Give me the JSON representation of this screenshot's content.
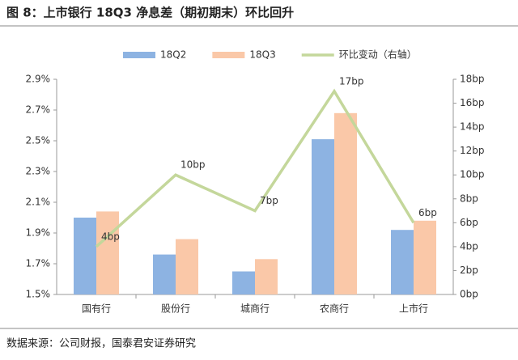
{
  "chart_data": {
    "type": "bar",
    "title": "图 8：上市银行 18Q3 净息差（期初期末）环比回升",
    "source": "数据来源：公司财报，国泰君安证券研究",
    "categories": [
      "国有行",
      "股份行",
      "城商行",
      "农商行",
      "上市行"
    ],
    "series": [
      {
        "name": "18Q2",
        "color": "#8db3e2",
        "values": [
          2.0,
          1.76,
          1.65,
          2.51,
          1.92
        ]
      },
      {
        "name": "18Q3",
        "color": "#fac8a8",
        "values": [
          2.04,
          1.86,
          1.73,
          2.68,
          1.98
        ]
      },
      {
        "name": "环比变动（右轴）",
        "color": "#c4d79b",
        "type": "line",
        "axis": "y2",
        "values": [
          4,
          10,
          7,
          17,
          6
        ],
        "value_labels": [
          "4bp",
          "10bp",
          "7bp",
          "17bp",
          "6bp"
        ]
      }
    ],
    "ylim": [
      1.5,
      2.9
    ],
    "yticks": [
      {
        "value": 1.5,
        "label": "1.5%"
      },
      {
        "value": 1.7,
        "label": "1.7%"
      },
      {
        "value": 1.9,
        "label": "1.9%"
      },
      {
        "value": 2.1,
        "label": "2.1%"
      },
      {
        "value": 2.3,
        "label": "2.3%"
      },
      {
        "value": 2.5,
        "label": "2.5%"
      },
      {
        "value": 2.7,
        "label": "2.7%"
      },
      {
        "value": 2.9,
        "label": "2.9%"
      }
    ],
    "y2lim": [
      0,
      18
    ],
    "y2ticks": [
      {
        "value": 0,
        "label": "0bp"
      },
      {
        "value": 2,
        "label": "2bp"
      },
      {
        "value": 4,
        "label": "4bp"
      },
      {
        "value": 6,
        "label": "6bp"
      },
      {
        "value": 8,
        "label": "8bp"
      },
      {
        "value": 10,
        "label": "10bp"
      },
      {
        "value": 12,
        "label": "12bp"
      },
      {
        "value": 14,
        "label": "14bp"
      },
      {
        "value": 16,
        "label": "16bp"
      },
      {
        "value": 18,
        "label": "18bp"
      }
    ]
  }
}
